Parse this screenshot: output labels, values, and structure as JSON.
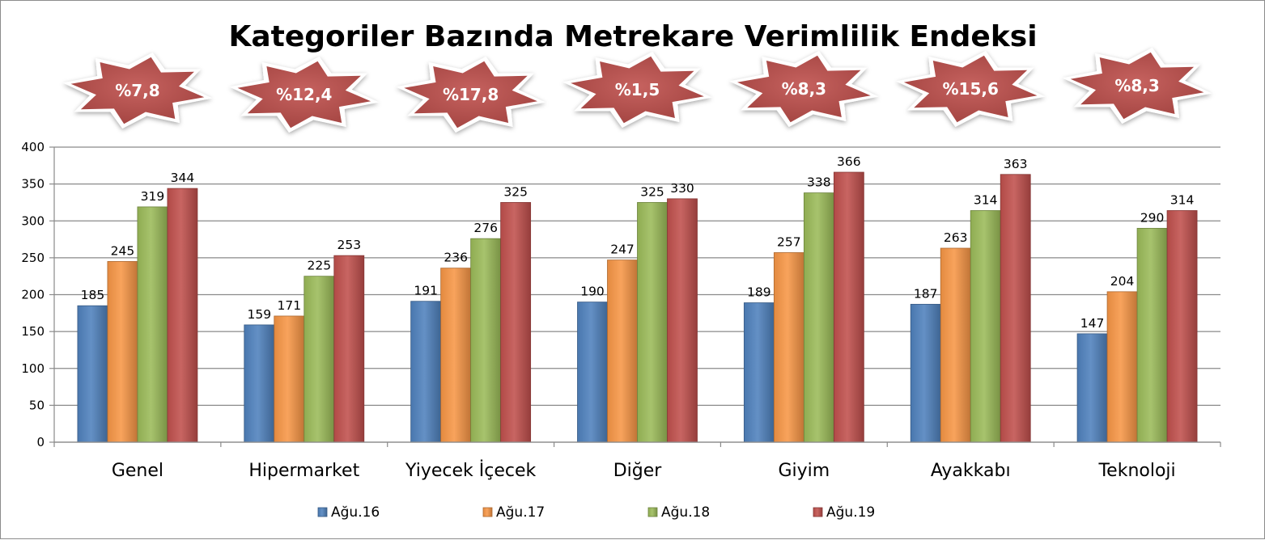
{
  "chart_data": {
    "type": "bar",
    "title": "Kategoriler Bazında Metrekare Verimlilik Endeksi",
    "categories": [
      "Genel",
      "Hipermarket",
      "Yiyecek İçecek",
      "Diğer",
      "Giyim",
      "Ayakkabı",
      "Teknoloji"
    ],
    "series": [
      {
        "name": "Ağu.16",
        "values": [
          185,
          159,
          191,
          190,
          189,
          187,
          147
        ],
        "color": "#4f81bd"
      },
      {
        "name": "Ağu.17",
        "values": [
          245,
          171,
          236,
          247,
          257,
          263,
          204
        ],
        "color": "#f79646"
      },
      {
        "name": "Ağu.18",
        "values": [
          319,
          225,
          276,
          325,
          338,
          314,
          290
        ],
        "color": "#9bbb59"
      },
      {
        "name": "Ağu.19",
        "values": [
          344,
          253,
          325,
          330,
          366,
          363,
          314
        ],
        "color": "#c0504d"
      }
    ],
    "badges": [
      "%7,8",
      "%12,4",
      "%17,8",
      "%1,5",
      "%8,3",
      "%15,6",
      "%8,3"
    ],
    "badge_color": "#c0504d",
    "ylim": [
      0,
      400
    ],
    "yticks": [
      0,
      50,
      100,
      150,
      200,
      250,
      300,
      350,
      400
    ],
    "grid": true,
    "legend_position": "bottom",
    "data_labels": true
  }
}
